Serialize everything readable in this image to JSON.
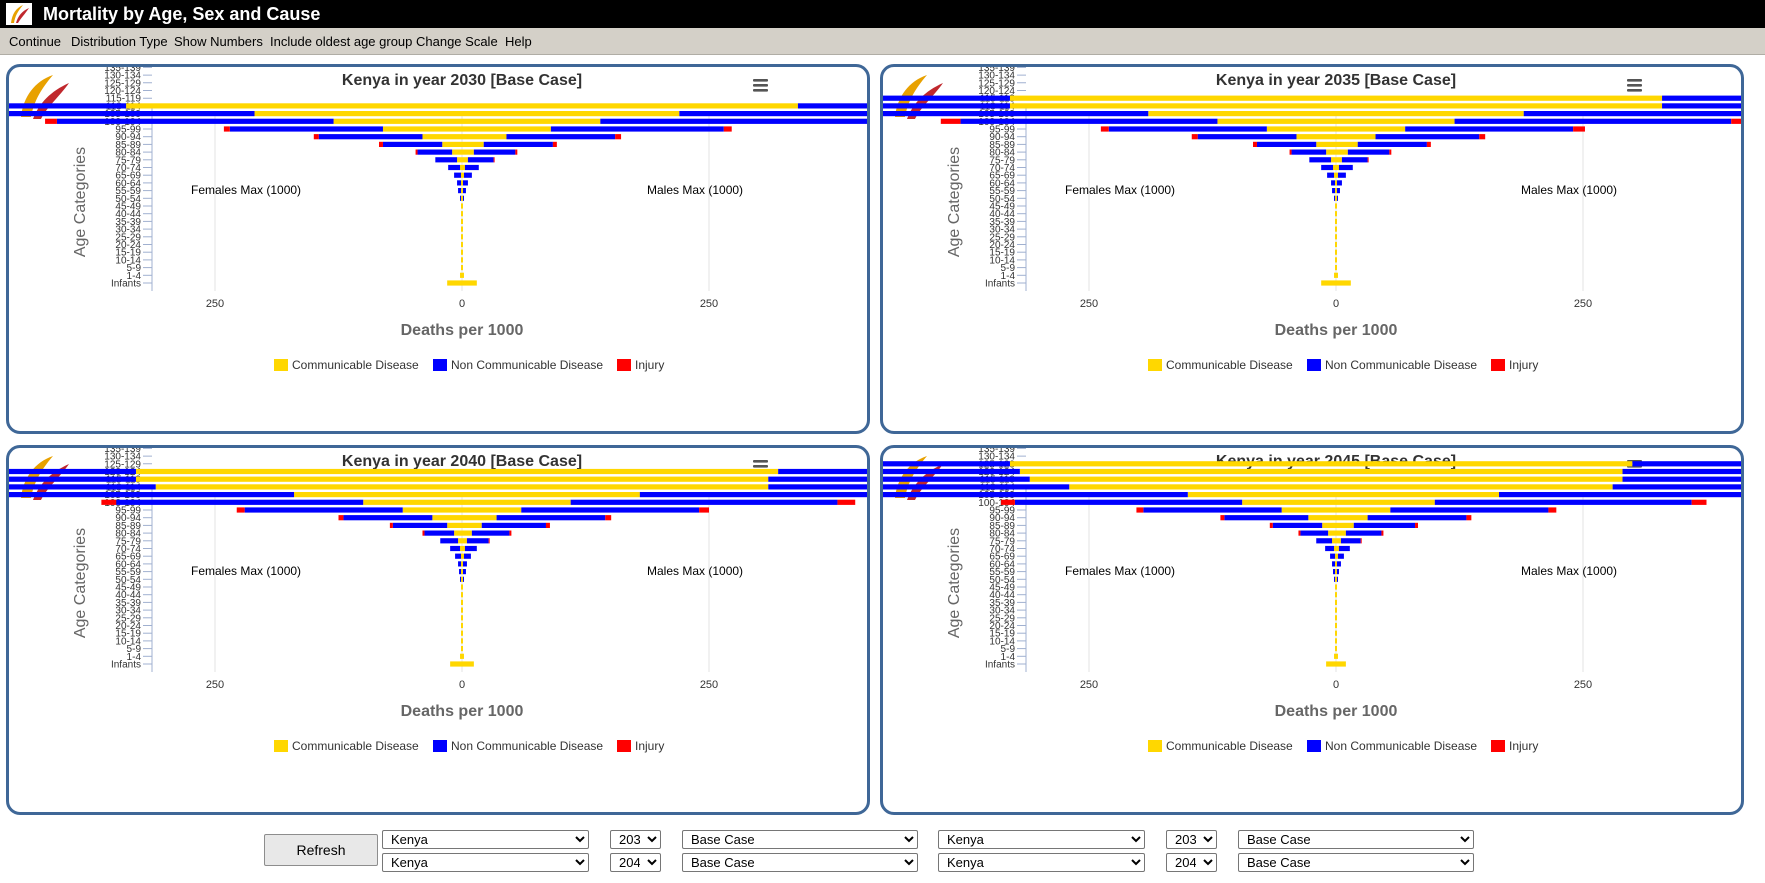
{
  "app": {
    "title": "Mortality by Age, Sex and Cause"
  },
  "menu": [
    "Continue",
    "Distribution Type",
    "Show Numbers",
    "Include oldest age group",
    "Change Scale",
    "Help"
  ],
  "colors": {
    "communicable": "#ffd700",
    "noncommunicable": "#0000ff",
    "injury": "#ff0000",
    "panel_border": "#3f6797"
  },
  "controls": {
    "refresh_label": "Refresh",
    "rows": [
      {
        "country_a": "Kenya",
        "year_a": "2030",
        "scenario_a": "Base Case",
        "country_b": "Kenya",
        "year_b": "2035",
        "scenario_b": "Base Case"
      },
      {
        "country_a": "Kenya",
        "year_a": "2040",
        "scenario_a": "Base Case",
        "country_b": "Kenya",
        "year_b": "2045",
        "scenario_b": "Base Case"
      }
    ]
  },
  "chart_data": [
    {
      "type": "bar",
      "title": "Kenya in year 2030 [Base Case]",
      "xlabel": "Deaths per 1000",
      "ylabel": "Age Categories",
      "xlim": [
        -1250,
        1250
      ],
      "xticks": [
        "1250",
        "1000",
        "750",
        "500",
        "250",
        "0",
        "250",
        "500",
        "750",
        "1000",
        "1250"
      ],
      "annotations": {
        "left": "Females Max (1000)",
        "right": "Males Max (1000)"
      },
      "categories": [
        "Infants",
        "1-4",
        "5-9",
        "10-14",
        "15-19",
        "20-24",
        "25-29",
        "30-34",
        "35-39",
        "40-44",
        "45-49",
        "50-54",
        "55-59",
        "60-64",
        "65-69",
        "70-74",
        "75-79",
        "80-84",
        "85-89",
        "90-94",
        "95-99",
        "100-104",
        "105-109",
        "110-114",
        "115-119",
        "120-124",
        "125-129",
        "130-134",
        "135-139",
        "140-144"
      ],
      "series": [
        {
          "name": "Communicable Disease",
          "female": [
            15,
            2,
            1,
            1,
            1,
            1,
            1,
            1,
            1,
            1,
            1,
            1,
            1,
            1,
            1,
            2,
            5,
            10,
            20,
            40,
            80,
            130,
            210,
            340,
            0,
            0,
            0,
            0,
            0,
            0
          ],
          "male": [
            15,
            2,
            1,
            1,
            1,
            1,
            1,
            1,
            1,
            1,
            1,
            1,
            1,
            1,
            2,
            3,
            6,
            12,
            22,
            45,
            90,
            140,
            220,
            340,
            0,
            0,
            0,
            0,
            0,
            0
          ]
        },
        {
          "name": "Non Communicable Disease",
          "female": [
            0,
            0,
            0,
            0,
            0,
            0,
            0,
            0,
            0,
            0,
            0,
            1,
            3,
            4,
            7,
            12,
            22,
            35,
            60,
            105,
            155,
            280,
            425,
            605,
            0,
            0,
            0,
            0,
            0,
            0
          ],
          "male": [
            0,
            0,
            0,
            0,
            0,
            0,
            0,
            0,
            0,
            0,
            0,
            1,
            3,
            5,
            8,
            14,
            26,
            42,
            70,
            110,
            175,
            305,
            435,
            600,
            0,
            0,
            0,
            0,
            0,
            0
          ]
        },
        {
          "name": "Injury",
          "female": [
            0,
            0,
            0,
            0,
            0,
            0,
            0,
            0,
            0,
            0,
            0,
            0,
            0,
            0,
            0,
            0,
            0,
            2,
            4,
            5,
            6,
            12,
            25,
            55,
            0,
            0,
            0,
            0,
            0,
            0
          ],
          "male": [
            0,
            0,
            0,
            0,
            0,
            0,
            0,
            0,
            0,
            0,
            0,
            0,
            0,
            0,
            0,
            0,
            1,
            2,
            4,
            6,
            8,
            12,
            30,
            55,
            0,
            0,
            0,
            0,
            0,
            0
          ]
        }
      ]
    },
    {
      "type": "bar",
      "title": "Kenya in year 2035 [Base Case]",
      "xlabel": "Deaths per 1000",
      "ylabel": "Age Categories",
      "xlim": [
        -1250,
        1250
      ],
      "xticks": [
        "1250",
        "1000",
        "750",
        "500",
        "250",
        "0",
        "250",
        "500",
        "750",
        "1000",
        "1250"
      ],
      "annotations": {
        "left": "Females Max (1000)",
        "right": "Males Max (1000)"
      },
      "categories": [
        "Infants",
        "1-4",
        "5-9",
        "10-14",
        "15-19",
        "20-24",
        "25-29",
        "30-34",
        "35-39",
        "40-44",
        "45-49",
        "50-54",
        "55-59",
        "60-64",
        "65-69",
        "70-74",
        "75-79",
        "80-84",
        "85-89",
        "90-94",
        "95-99",
        "100-104",
        "105-109",
        "110-114",
        "115-119",
        "120-124",
        "125-129",
        "130-134",
        "135-139",
        "140-144",
        "145-149"
      ],
      "series": [
        {
          "name": "Communicable Disease",
          "female": [
            15,
            2,
            1,
            1,
            1,
            1,
            1,
            1,
            1,
            1,
            1,
            1,
            1,
            1,
            2,
            3,
            5,
            10,
            20,
            40,
            70,
            120,
            190,
            330,
            330,
            0,
            0,
            0,
            0,
            0,
            0
          ],
          "male": [
            15,
            2,
            1,
            1,
            1,
            1,
            1,
            1,
            1,
            1,
            1,
            1,
            1,
            1,
            2,
            3,
            6,
            12,
            22,
            40,
            70,
            120,
            190,
            330,
            330,
            0,
            0,
            0,
            0,
            0,
            0
          ]
        },
        {
          "name": "Non Communicable Disease",
          "female": [
            0,
            0,
            0,
            0,
            0,
            0,
            0,
            0,
            0,
            0,
            0,
            1,
            3,
            4,
            7,
            12,
            22,
            35,
            60,
            100,
            160,
            260,
            450,
            610,
            610,
            0,
            0,
            0,
            0,
            0,
            0
          ],
          "male": [
            0,
            0,
            0,
            0,
            0,
            0,
            0,
            0,
            0,
            0,
            0,
            1,
            3,
            5,
            8,
            14,
            26,
            42,
            70,
            105,
            170,
            280,
            470,
            605,
            605,
            0,
            0,
            0,
            0,
            0,
            0
          ]
        },
        {
          "name": "Injury",
          "female": [
            0,
            0,
            0,
            0,
            0,
            0,
            0,
            0,
            0,
            0,
            0,
            0,
            0,
            0,
            0,
            0,
            0,
            2,
            4,
            6,
            8,
            20,
            30,
            55,
            60,
            0,
            0,
            0,
            0,
            0,
            0
          ],
          "male": [
            0,
            0,
            0,
            0,
            0,
            0,
            0,
            0,
            0,
            0,
            0,
            0,
            0,
            0,
            0,
            0,
            1,
            2,
            4,
            6,
            12,
            20,
            40,
            65,
            65,
            0,
            0,
            0,
            0,
            0,
            0
          ]
        }
      ]
    },
    {
      "type": "bar",
      "title": "Kenya in year 2040 [Base Case]",
      "xlabel": "Deaths per 1000",
      "ylabel": "Age Categories",
      "xlim": [
        -1250,
        1250
      ],
      "xticks": [
        "1250",
        "1000",
        "750",
        "500",
        "250",
        "0",
        "250",
        "500",
        "750",
        "1000",
        "1250"
      ],
      "annotations": {
        "left": "Females Max (1000)",
        "right": "Males Max (1000)"
      },
      "categories": [
        "Infants",
        "1-4",
        "5-9",
        "10-14",
        "15-19",
        "20-24",
        "25-29",
        "30-34",
        "35-39",
        "40-44",
        "45-49",
        "50-54",
        "55-59",
        "60-64",
        "65-69",
        "70-74",
        "75-79",
        "80-84",
        "85-89",
        "90-94",
        "95-99",
        "100-104",
        "105-109",
        "110-114",
        "115-119",
        "120-124",
        "125-129",
        "130-134",
        "135-139",
        "140-144",
        "145-149"
      ],
      "series": [
        {
          "name": "Communicable Disease",
          "female": [
            12,
            2,
            1,
            1,
            1,
            1,
            1,
            1,
            1,
            1,
            1,
            1,
            1,
            1,
            1,
            2,
            4,
            8,
            15,
            30,
            60,
            100,
            170,
            310,
            330,
            330,
            0,
            0,
            0,
            0,
            0
          ],
          "male": [
            12,
            2,
            1,
            1,
            1,
            1,
            1,
            1,
            1,
            1,
            1,
            1,
            1,
            1,
            2,
            3,
            5,
            10,
            20,
            35,
            60,
            110,
            180,
            310,
            310,
            320,
            0,
            0,
            0,
            0,
            0
          ]
        },
        {
          "name": "Non Communicable Disease",
          "female": [
            0,
            0,
            0,
            0,
            0,
            0,
            0,
            0,
            0,
            0,
            0,
            1,
            2,
            3,
            6,
            10,
            18,
            30,
            55,
            90,
            160,
            250,
            380,
            540,
            610,
            600,
            0,
            0,
            0,
            0,
            0
          ],
          "male": [
            0,
            0,
            0,
            0,
            0,
            0,
            0,
            0,
            0,
            0,
            0,
            1,
            3,
            4,
            7,
            12,
            22,
            38,
            65,
            110,
            180,
            270,
            430,
            610,
            610,
            600,
            0,
            0,
            0,
            0,
            0
          ]
        },
        {
          "name": "Injury",
          "female": [
            0,
            0,
            0,
            0,
            0,
            0,
            0,
            0,
            0,
            0,
            0,
            0,
            0,
            0,
            0,
            0,
            0,
            2,
            3,
            5,
            8,
            15,
            30,
            50,
            80,
            85,
            0,
            0,
            0,
            0,
            0
          ],
          "male": [
            0,
            0,
            0,
            0,
            0,
            0,
            0,
            0,
            0,
            0,
            0,
            0,
            0,
            0,
            0,
            0,
            1,
            2,
            4,
            6,
            10,
            18,
            40,
            75,
            75,
            75,
            0,
            0,
            0,
            0,
            0
          ]
        }
      ]
    },
    {
      "type": "bar",
      "title": "Kenya in year 2045 [Base Case]",
      "xlabel": "Deaths per 1000",
      "ylabel": "Age Categories",
      "xlim": [
        -1250,
        1250
      ],
      "xticks": [
        "1250",
        "1000",
        "750",
        "500",
        "250",
        "0",
        "250",
        "500",
        "750",
        "1000",
        "1250"
      ],
      "annotations": {
        "left": "Females Max (1000)",
        "right": "Males Max (1000)"
      },
      "categories": [
        "Infants",
        "1-4",
        "5-9",
        "10-14",
        "15-19",
        "20-24",
        "25-29",
        "30-34",
        "35-39",
        "40-44",
        "45-49",
        "50-54",
        "55-59",
        "60-64",
        "65-69",
        "70-74",
        "75-79",
        "80-84",
        "85-89",
        "90-94",
        "95-99",
        "100-104",
        "105-109",
        "110-114",
        "115-119",
        "120-124",
        "125-129",
        "130-134",
        "135-139",
        "140-144",
        "145-149"
      ],
      "series": [
        {
          "name": "Communicable Disease",
          "female": [
            10,
            2,
            1,
            1,
            1,
            1,
            1,
            1,
            1,
            1,
            1,
            1,
            1,
            1,
            1,
            2,
            4,
            8,
            14,
            28,
            55,
            95,
            150,
            270,
            310,
            320,
            330,
            0,
            0,
            0,
            0
          ],
          "male": [
            10,
            2,
            1,
            1,
            1,
            1,
            1,
            1,
            1,
            1,
            1,
            1,
            1,
            1,
            2,
            3,
            5,
            10,
            18,
            32,
            55,
            100,
            165,
            280,
            290,
            290,
            300,
            0,
            0,
            0,
            0
          ]
        },
        {
          "name": "Non Communicable Disease",
          "female": [
            0,
            0,
            0,
            0,
            0,
            0,
            0,
            0,
            0,
            0,
            0,
            1,
            2,
            3,
            5,
            9,
            16,
            28,
            50,
            85,
            140,
            230,
            370,
            530,
            600,
            580,
            570,
            0,
            0,
            0,
            0
          ],
          "male": [
            0,
            0,
            0,
            0,
            0,
            0,
            0,
            0,
            0,
            0,
            0,
            1,
            2,
            4,
            6,
            11,
            20,
            36,
            62,
            100,
            160,
            260,
            380,
            600,
            610,
            610,
            610,
            0,
            0,
            0,
            0
          ]
        },
        {
          "name": "Injury",
          "female": [
            0,
            0,
            0,
            0,
            0,
            0,
            0,
            0,
            0,
            0,
            0,
            0,
            0,
            0,
            0,
            0,
            0,
            2,
            3,
            4,
            7,
            14,
            35,
            60,
            75,
            85,
            85,
            0,
            0,
            0,
            0
          ],
          "male": [
            0,
            0,
            0,
            0,
            0,
            0,
            0,
            0,
            0,
            0,
            0,
            0,
            0,
            0,
            0,
            0,
            1,
            2,
            3,
            5,
            8,
            15,
            30,
            65,
            75,
            70,
            70,
            0,
            0,
            0,
            0
          ]
        }
      ]
    }
  ]
}
